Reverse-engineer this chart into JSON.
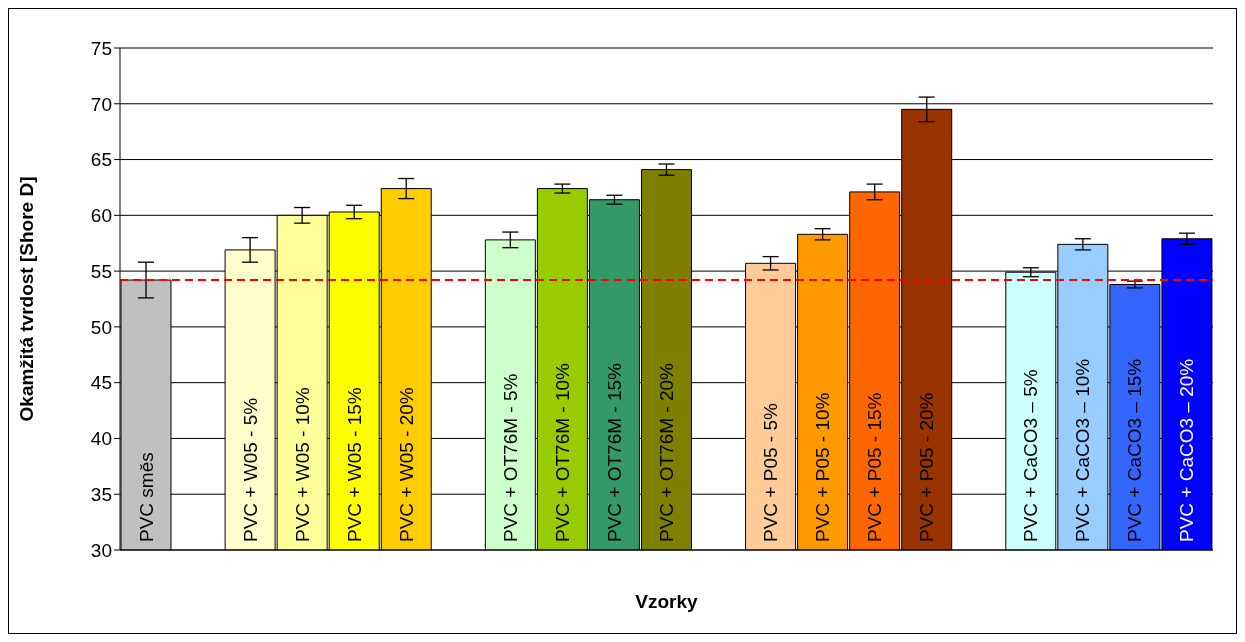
{
  "chart_data": {
    "type": "bar",
    "xlabel": "Vzorky",
    "ylabel": "Okamžitá tvrdost [Shore D]",
    "categories": [
      "PVC směs",
      null,
      "PVC + W05 - 5%",
      "PVC + W05 - 10%",
      "PVC + W05 - 15%",
      "PVC + W05 - 20%",
      null,
      "PVC + OT76M - 5%",
      "PVC + OT76M - 10%",
      "PVC + OT76M - 15%",
      "PVC + OT76M - 20%",
      null,
      "PVC + P05 - 5%",
      "PVC + P05 - 10%",
      "PVC + P05 - 15%",
      "PVC + P05 - 20%",
      null,
      "PVC + CaCO3 – 5%",
      "PVC + CaCO3 – 10%",
      "PVC + CaCO3 – 15%",
      "PVC + CaCO3 – 20%"
    ],
    "values": [
      54.2,
      null,
      56.9,
      60.0,
      60.3,
      62.4,
      null,
      57.8,
      62.4,
      61.4,
      64.1,
      null,
      55.7,
      58.3,
      62.1,
      69.5,
      null,
      54.9,
      57.4,
      53.8,
      57.9
    ],
    "errors": [
      1.6,
      null,
      1.1,
      0.7,
      0.6,
      0.9,
      null,
      0.7,
      0.4,
      0.4,
      0.5,
      null,
      0.6,
      0.5,
      0.7,
      1.1,
      null,
      0.4,
      0.5,
      0.3,
      0.5
    ],
    "colors": [
      "#c0c0c0",
      null,
      "#ffffcc",
      "#ffff99",
      "#ffff00",
      "#ffcc00",
      null,
      "#ccffcc",
      "#99cc00",
      "#339966",
      "#808000",
      null,
      "#ffcc99",
      "#ff9900",
      "#ff6600",
      "#993300",
      null,
      "#ccffff",
      "#99ccff",
      "#3366ff",
      "#0000ff"
    ],
    "ylim": [
      30,
      75
    ],
    "yticks": [
      30,
      35,
      40,
      45,
      50,
      55,
      60,
      65,
      70,
      75
    ],
    "grid": "y",
    "ref_lines": [
      {
        "axis": "y",
        "value": 54.2,
        "label": null,
        "color": "#ff0000",
        "line_style": "dashed"
      }
    ]
  }
}
